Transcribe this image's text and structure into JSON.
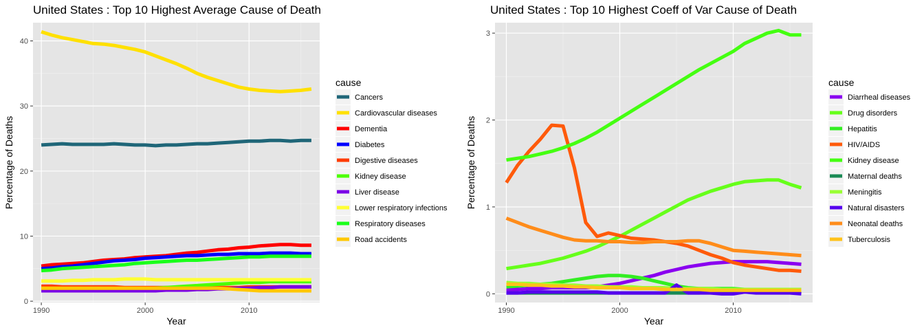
{
  "chart_data": [
    {
      "type": "line",
      "title": "United States : Top  10  Highest Average Cause of Death",
      "xlabel": "Year",
      "ylabel": "Percentage of Deaths",
      "xlim": [
        1989.2,
        2016.8
      ],
      "ylim": [
        -0.2,
        42.8
      ],
      "x_ticks": [
        1990,
        2000,
        2010
      ],
      "y_ticks": [
        0,
        10,
        20,
        30,
        40
      ],
      "grid": true,
      "background": "#e5e5e5",
      "legend_position": "right",
      "legend_title": "cause",
      "x": [
        1990,
        1991,
        1992,
        1993,
        1994,
        1995,
        1996,
        1997,
        1998,
        1999,
        2000,
        2001,
        2002,
        2003,
        2004,
        2005,
        2006,
        2007,
        2008,
        2009,
        2010,
        2011,
        2012,
        2013,
        2014,
        2015,
        2016
      ],
      "series": [
        {
          "name": "Cancers",
          "color": "#1f6678",
          "values": [
            24.0,
            24.1,
            24.2,
            24.1,
            24.1,
            24.1,
            24.1,
            24.2,
            24.1,
            24.0,
            24.0,
            23.9,
            24.0,
            24.0,
            24.1,
            24.2,
            24.2,
            24.3,
            24.4,
            24.5,
            24.6,
            24.6,
            24.7,
            24.7,
            24.6,
            24.7,
            24.7
          ]
        },
        {
          "name": "Cardiovascular diseases",
          "color": "#ffe000",
          "values": [
            41.4,
            40.9,
            40.5,
            40.2,
            39.9,
            39.6,
            39.5,
            39.3,
            39.0,
            38.7,
            38.3,
            37.7,
            37.1,
            36.5,
            35.8,
            35.0,
            34.4,
            33.9,
            33.4,
            32.9,
            32.6,
            32.4,
            32.3,
            32.2,
            32.3,
            32.4,
            32.6
          ]
        },
        {
          "name": "Dementia",
          "color": "#ff0000",
          "values": [
            5.4,
            5.6,
            5.7,
            5.8,
            5.9,
            6.1,
            6.3,
            6.4,
            6.5,
            6.7,
            6.8,
            6.9,
            7.0,
            7.2,
            7.4,
            7.5,
            7.7,
            7.9,
            8.0,
            8.2,
            8.3,
            8.5,
            8.6,
            8.7,
            8.7,
            8.6,
            8.6
          ]
        },
        {
          "name": "Diabetes",
          "color": "#0000ff",
          "values": [
            5.0,
            5.1,
            5.3,
            5.4,
            5.6,
            5.8,
            6.0,
            6.2,
            6.3,
            6.4,
            6.6,
            6.7,
            6.8,
            6.9,
            7.0,
            7.0,
            7.1,
            7.2,
            7.2,
            7.3,
            7.3,
            7.3,
            7.4,
            7.4,
            7.4,
            7.3,
            7.3
          ]
        },
        {
          "name": "Digestive diseases",
          "color": "#ff3b00",
          "values": [
            2.3,
            2.3,
            2.2,
            2.2,
            2.2,
            2.2,
            2.2,
            2.2,
            2.1,
            2.1,
            2.1,
            2.1,
            2.1,
            2.1,
            2.1,
            2.1,
            2.1,
            2.1,
            2.1,
            2.1,
            2.2,
            2.2,
            2.2,
            2.2,
            2.2,
            2.2,
            2.2
          ]
        },
        {
          "name": "Kidney disease",
          "color": "#4cff00",
          "values": [
            1.8,
            1.8,
            1.8,
            1.8,
            1.8,
            1.8,
            1.8,
            1.8,
            1.8,
            1.8,
            1.9,
            2.0,
            2.1,
            2.2,
            2.3,
            2.4,
            2.5,
            2.6,
            2.7,
            2.8,
            2.9,
            2.9,
            3.0,
            3.0,
            3.0,
            3.0,
            3.0
          ]
        },
        {
          "name": "Liver disease",
          "color": "#7a00e6",
          "values": [
            1.6,
            1.6,
            1.6,
            1.6,
            1.6,
            1.6,
            1.6,
            1.6,
            1.6,
            1.6,
            1.6,
            1.6,
            1.7,
            1.7,
            1.7,
            1.8,
            1.8,
            1.9,
            1.9,
            2.0,
            2.0,
            2.1,
            2.1,
            2.2,
            2.2,
            2.2,
            2.2
          ]
        },
        {
          "name": "Lower respiratory infections",
          "color": "#ffff33",
          "values": [
            3.1,
            3.1,
            3.1,
            3.2,
            3.2,
            3.3,
            3.3,
            3.3,
            3.4,
            3.4,
            3.4,
            3.3,
            3.3,
            3.3,
            3.3,
            3.3,
            3.3,
            3.3,
            3.3,
            3.3,
            3.3,
            3.3,
            3.3,
            3.3,
            3.3,
            3.3,
            3.3
          ]
        },
        {
          "name": "Respiratory diseases",
          "color": "#1aff1a",
          "values": [
            4.7,
            4.8,
            5.0,
            5.1,
            5.2,
            5.3,
            5.4,
            5.5,
            5.6,
            5.8,
            5.9,
            6.0,
            6.1,
            6.2,
            6.3,
            6.3,
            6.4,
            6.5,
            6.6,
            6.7,
            6.8,
            6.8,
            6.9,
            6.9,
            6.9,
            6.9,
            6.9
          ]
        },
        {
          "name": "Road accidents",
          "color": "#ffc800",
          "values": [
            2.0,
            2.0,
            2.0,
            2.0,
            2.0,
            2.0,
            2.0,
            2.0,
            2.0,
            2.0,
            2.0,
            2.0,
            2.0,
            2.0,
            2.0,
            2.0,
            2.0,
            2.0,
            1.9,
            1.8,
            1.7,
            1.6,
            1.6,
            1.6,
            1.6,
            1.6,
            1.6
          ]
        }
      ]
    },
    {
      "type": "line",
      "title": "United States : Top  10  Highest Coeff of Var Cause of Death",
      "xlabel": "Year",
      "ylabel": "Percentage of Deaths",
      "xlim": [
        1989.0,
        2017.0
      ],
      "ylim": [
        -0.1,
        3.12
      ],
      "x_ticks": [
        1990,
        2000,
        2010
      ],
      "y_ticks": [
        0,
        1,
        2,
        3
      ],
      "grid": true,
      "background": "#e5e5e5",
      "legend_position": "right",
      "legend_title": "cause",
      "x": [
        1990,
        1991,
        1992,
        1993,
        1994,
        1995,
        1996,
        1997,
        1998,
        1999,
        2000,
        2001,
        2002,
        2003,
        2004,
        2005,
        2006,
        2007,
        2008,
        2009,
        2010,
        2011,
        2012,
        2013,
        2014,
        2015,
        2016
      ],
      "series": [
        {
          "name": "Diarrheal diseases",
          "color": "#8a00f0",
          "values": [
            0.05,
            0.05,
            0.06,
            0.06,
            0.07,
            0.07,
            0.07,
            0.07,
            0.08,
            0.1,
            0.12,
            0.15,
            0.18,
            0.21,
            0.25,
            0.28,
            0.31,
            0.33,
            0.35,
            0.36,
            0.37,
            0.37,
            0.37,
            0.37,
            0.36,
            0.35,
            0.34
          ]
        },
        {
          "name": "Drug disorders",
          "color": "#66ff1a",
          "values": [
            0.29,
            0.31,
            0.33,
            0.35,
            0.38,
            0.41,
            0.45,
            0.49,
            0.54,
            0.6,
            0.66,
            0.73,
            0.8,
            0.87,
            0.94,
            1.01,
            1.08,
            1.13,
            1.18,
            1.22,
            1.26,
            1.29,
            1.3,
            1.31,
            1.31,
            1.26,
            1.22
          ]
        },
        {
          "name": "Hepatitis",
          "color": "#33ee22",
          "values": [
            0.08,
            0.09,
            0.1,
            0.11,
            0.12,
            0.14,
            0.16,
            0.18,
            0.2,
            0.21,
            0.21,
            0.2,
            0.18,
            0.15,
            0.12,
            0.09,
            0.07,
            0.06,
            0.06,
            0.06,
            0.06,
            0.05,
            0.05,
            0.05,
            0.05,
            0.05,
            0.05
          ]
        },
        {
          "name": "HIV/AIDS",
          "color": "#ff5a0a",
          "values": [
            1.28,
            1.48,
            1.64,
            1.78,
            1.94,
            1.93,
            1.45,
            0.82,
            0.66,
            0.7,
            0.67,
            0.64,
            0.63,
            0.62,
            0.6,
            0.58,
            0.55,
            0.5,
            0.45,
            0.41,
            0.36,
            0.33,
            0.31,
            0.29,
            0.27,
            0.27,
            0.26
          ]
        },
        {
          "name": "Kidney disease",
          "color": "#44ff11",
          "values": [
            1.54,
            1.56,
            1.58,
            1.61,
            1.64,
            1.68,
            1.73,
            1.79,
            1.86,
            1.94,
            2.02,
            2.1,
            2.18,
            2.26,
            2.34,
            2.42,
            2.5,
            2.58,
            2.65,
            2.72,
            2.79,
            2.88,
            2.94,
            3.0,
            3.03,
            2.98,
            2.98
          ]
        },
        {
          "name": "Maternal deaths",
          "color": "#1a8a55",
          "values": [
            0.01,
            0.01,
            0.01,
            0.01,
            0.01,
            0.01,
            0.01,
            0.01,
            0.01,
            0.01,
            0.01,
            0.01,
            0.01,
            0.01,
            0.01,
            0.01,
            0.01,
            0.01,
            0.02,
            0.02,
            0.02,
            0.02,
            0.02,
            0.02,
            0.02,
            0.02,
            0.02
          ]
        },
        {
          "name": "Meningitis",
          "color": "#99ff33",
          "values": [
            0.13,
            0.12,
            0.12,
            0.11,
            0.11,
            0.1,
            0.1,
            0.09,
            0.09,
            0.08,
            0.08,
            0.08,
            0.07,
            0.07,
            0.07,
            0.06,
            0.06,
            0.06,
            0.06,
            0.05,
            0.05,
            0.05,
            0.05,
            0.05,
            0.05,
            0.05,
            0.05
          ]
        },
        {
          "name": "Natural disasters",
          "color": "#5500ee",
          "values": [
            0.01,
            0.01,
            0.02,
            0.02,
            0.02,
            0.02,
            0.02,
            0.02,
            0.02,
            0.01,
            0.01,
            0.01,
            0.01,
            0.01,
            0.01,
            0.1,
            0.01,
            0.01,
            0.01,
            0.0,
            0.0,
            0.02,
            0.01,
            0.01,
            0.01,
            0.01,
            0.0
          ]
        },
        {
          "name": "Neonatal deaths",
          "color": "#ff8c1a",
          "values": [
            0.87,
            0.82,
            0.77,
            0.73,
            0.69,
            0.65,
            0.62,
            0.61,
            0.61,
            0.6,
            0.6,
            0.59,
            0.59,
            0.6,
            0.6,
            0.6,
            0.61,
            0.61,
            0.58,
            0.54,
            0.5,
            0.49,
            0.48,
            0.47,
            0.46,
            0.45,
            0.44
          ]
        },
        {
          "name": "Tuberculosis",
          "color": "#ffc21a",
          "values": [
            0.11,
            0.11,
            0.1,
            0.1,
            0.09,
            0.09,
            0.08,
            0.08,
            0.07,
            0.07,
            0.07,
            0.06,
            0.06,
            0.06,
            0.05,
            0.05,
            0.05,
            0.05,
            0.04,
            0.04,
            0.04,
            0.04,
            0.04,
            0.04,
            0.04,
            0.04,
            0.04
          ]
        }
      ]
    }
  ]
}
